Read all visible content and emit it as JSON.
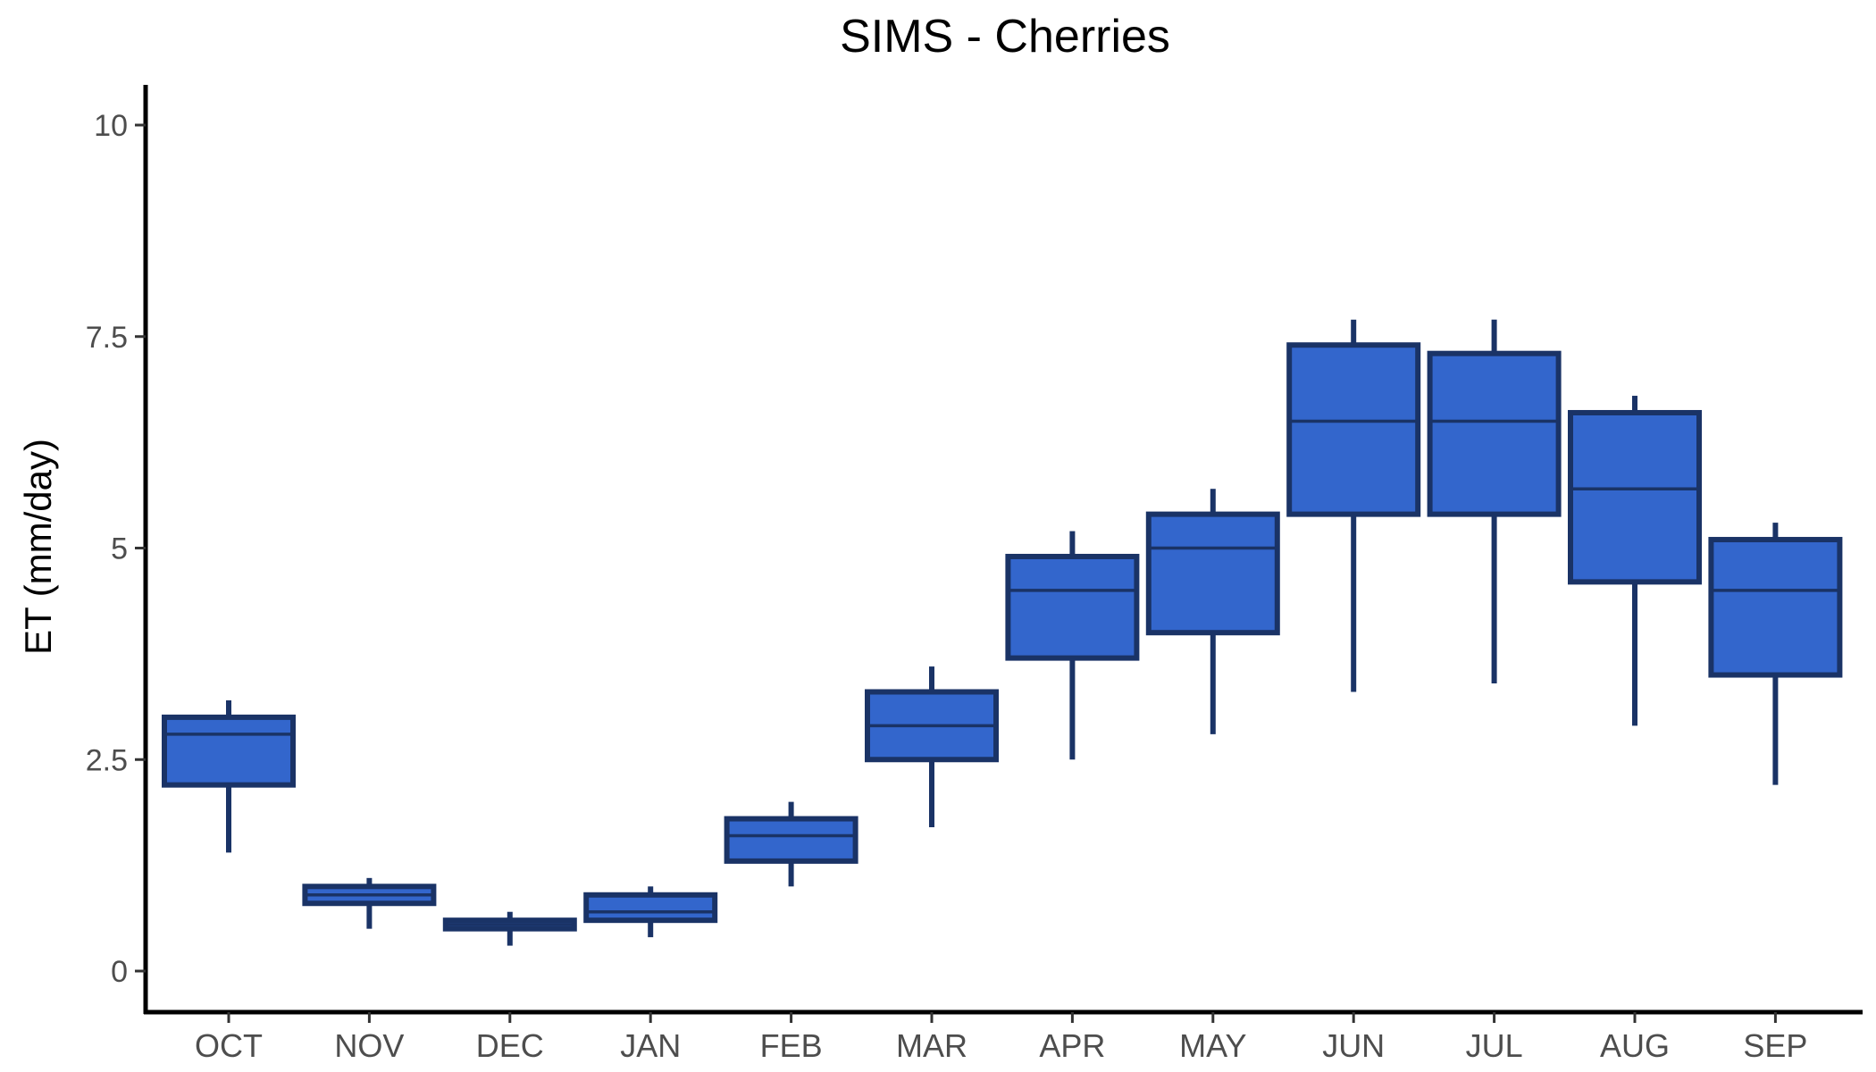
{
  "chart_data": {
    "type": "box",
    "title": "SIMS - Cherries",
    "xlabel": "",
    "ylabel": "ET (mm/day)",
    "ylim": [
      -0.5,
      10.5
    ],
    "yticks": [
      0,
      2.5,
      5,
      7.5,
      10
    ],
    "ytick_labels": [
      "0",
      "2.5",
      "5",
      "7.5",
      "10"
    ],
    "grid": false,
    "legend": "none",
    "categories": [
      "OCT",
      "NOV",
      "DEC",
      "JAN",
      "FEB",
      "MAR",
      "APR",
      "MAY",
      "JUN",
      "JUL",
      "AUG",
      "SEP"
    ],
    "boxes": [
      {
        "min": 1.4,
        "q1": 2.2,
        "median": 2.8,
        "q3": 3.0,
        "max": 3.2
      },
      {
        "min": 0.5,
        "q1": 0.8,
        "median": 0.9,
        "q3": 1.0,
        "max": 1.1
      },
      {
        "min": 0.3,
        "q1": 0.5,
        "median": 0.55,
        "q3": 0.6,
        "max": 0.7
      },
      {
        "min": 0.4,
        "q1": 0.6,
        "median": 0.7,
        "q3": 0.9,
        "max": 1.0
      },
      {
        "min": 1.0,
        "q1": 1.3,
        "median": 1.6,
        "q3": 1.8,
        "max": 2.0
      },
      {
        "min": 1.7,
        "q1": 2.5,
        "median": 2.9,
        "q3": 3.3,
        "max": 3.6
      },
      {
        "min": 2.5,
        "q1": 3.7,
        "median": 4.5,
        "q3": 4.9,
        "max": 5.2
      },
      {
        "min": 2.8,
        "q1": 4.0,
        "median": 5.0,
        "q3": 5.4,
        "max": 5.7
      },
      {
        "min": 3.3,
        "q1": 5.4,
        "median": 6.5,
        "q3": 7.4,
        "max": 7.7
      },
      {
        "min": 3.4,
        "q1": 5.4,
        "median": 6.5,
        "q3": 7.3,
        "max": 7.7
      },
      {
        "min": 2.9,
        "q1": 4.6,
        "median": 5.7,
        "q3": 6.6,
        "max": 6.8
      },
      {
        "min": 2.2,
        "q1": 3.5,
        "median": 4.5,
        "q3": 5.1,
        "max": 5.3
      }
    ],
    "colors": {
      "box_fill": "#3366CC",
      "box_stroke": "#1A3366",
      "axis": "#000000",
      "tick_label": "#4D4D4D"
    }
  }
}
